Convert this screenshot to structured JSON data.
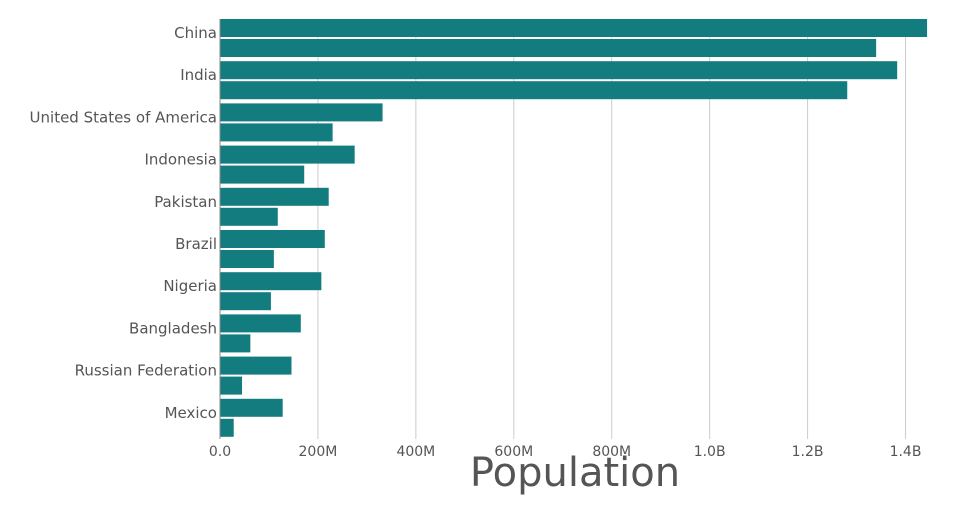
{
  "chart_data": {
    "type": "bar",
    "orientation": "horizontal",
    "title": "",
    "xlabel": "Population",
    "ylabel": "",
    "xlim": [
      0,
      1450000000
    ],
    "x_ticks": [
      0,
      200000000,
      400000000,
      600000000,
      800000000,
      1000000000,
      1200000000,
      1400000000
    ],
    "x_tick_labels": [
      "0.0",
      "200M",
      "400M",
      "600M",
      "800M",
      "1.0B",
      "1.2B",
      "1.4B"
    ],
    "grid": "vertical",
    "legend": "none",
    "bar_color": "#137c7e",
    "categories": [
      "China",
      "India",
      "United States of America",
      "Indonesia",
      "Pakistan",
      "Brazil",
      "Nigeria",
      "Bangladesh",
      "Russian Federation",
      "Mexico"
    ],
    "series": [
      {
        "values": [
          1444000000,
          1383000000,
          332000000,
          275000000,
          222000000,
          214000000,
          207000000,
          165000000,
          146000000,
          128000000
        ]
      },
      {
        "values": [
          1340000000,
          1281000000,
          230000000,
          172000000,
          118000000,
          110000000,
          104000000,
          62000000,
          45000000,
          28000000
        ]
      }
    ]
  }
}
